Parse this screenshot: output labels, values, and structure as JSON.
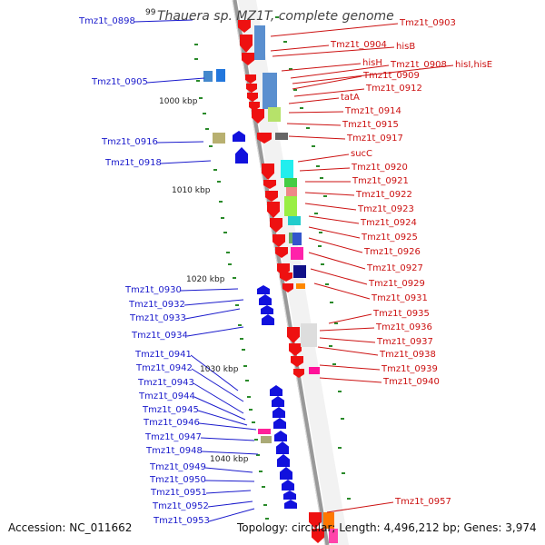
{
  "title": "Thauera sp. MZ1T, complete genome",
  "partial_tick": "99",
  "footer": {
    "accession": "Accession: NC_011662",
    "topology": "Topology: circular; Length: 4,496,212 bp; Genes: 3,974"
  },
  "scale_ticks": [
    "1000 kbp",
    "1010 kbp",
    "1020 kbp",
    "1030 kbp",
    "1040 kbp"
  ],
  "left_labels": [
    "Tmz1t_0898",
    "Tmz1t_0905",
    "Tmz1t_0916",
    "Tmz1t_0918",
    "Tmz1t_0930",
    "Tmz1t_0932",
    "Tmz1t_0933",
    "Tmz1t_0934",
    "Tmz1t_0941",
    "Tmz1t_0942",
    "Tmz1t_0943",
    "Tmz1t_0944",
    "Tmz1t_0945",
    "Tmz1t_0946",
    "Tmz1t_0947",
    "Tmz1t_0948",
    "Tmz1t_0949",
    "Tmz1t_0950",
    "Tmz1t_0951",
    "Tmz1t_0952",
    "Tmz1t_0953"
  ],
  "right_labels": [
    "Tmz1t_0903",
    "Tmz1t_0904",
    "hisB",
    "hisH",
    "Tmz1t_0908",
    "hisI,hisE",
    "Tmz1t_0909",
    "Tmz1t_0912",
    "tatA",
    "Tmz1t_0914",
    "Tmz1t_0915",
    "Tmz1t_0917",
    "sucC",
    "Tmz1t_0920",
    "Tmz1t_0921",
    "Tmz1t_0922",
    "Tmz1t_0923",
    "Tmz1t_0924",
    "Tmz1t_0925",
    "Tmz1t_0926",
    "Tmz1t_0927",
    "Tmz1t_0929",
    "Tmz1t_0931",
    "Tmz1t_0935",
    "Tmz1t_0936",
    "Tmz1t_0937",
    "Tmz1t_0938",
    "Tmz1t_0939",
    "Tmz1t_0940",
    "Tmz1t_0957"
  ],
  "colors": {
    "forward_strand": "#ee1111",
    "reverse_strand": "#1111dd",
    "left_label": "#1a1acc",
    "right_label": "#cc1111",
    "backbone": "#999999",
    "gc_dots": "#2a8a2a"
  }
}
